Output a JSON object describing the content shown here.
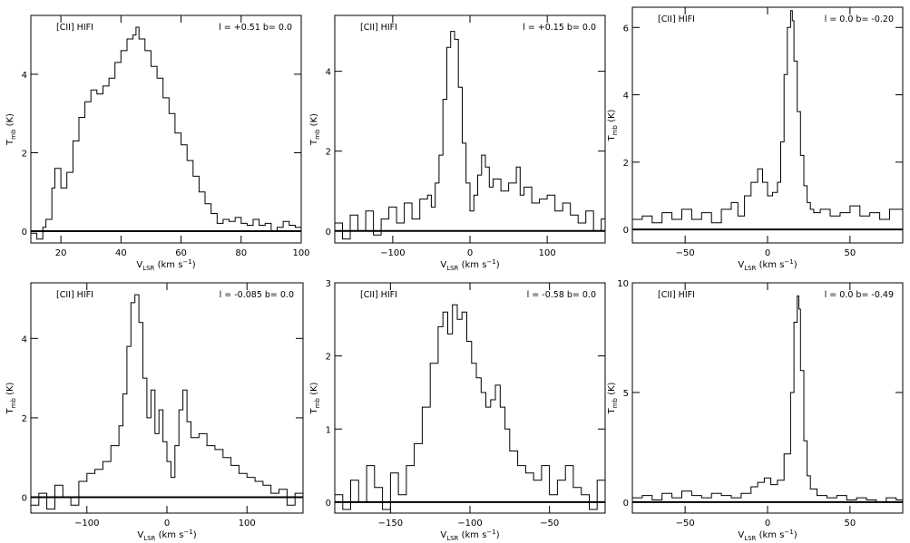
{
  "chart_data": [
    {
      "type": "line",
      "step": true,
      "label": "[CII] HIFI",
      "coords": "l = +0.51  b= 0.0",
      "xlabel": "V",
      "xlabel_sub": "LSR",
      "xlabel_units": " (km s",
      "ylabel": "T",
      "ylabel_sub": "mb",
      "ylabel_units": " (K)",
      "xlim": [
        10,
        100
      ],
      "ylim": [
        -0.3,
        5.5
      ],
      "xticks": [
        20,
        40,
        60,
        80,
        100
      ],
      "yticks": [
        0,
        2,
        4
      ],
      "x": [
        10,
        12,
        14,
        15,
        17,
        18,
        20,
        22,
        24,
        26,
        28,
        30,
        32,
        34,
        36,
        38,
        40,
        42,
        44,
        45,
        46,
        48,
        50,
        52,
        54,
        56,
        58,
        60,
        62,
        64,
        66,
        68,
        70,
        72,
        74,
        76,
        78,
        80,
        82,
        84,
        86,
        88,
        90,
        92,
        94,
        96,
        98,
        100
      ],
      "y": [
        -0.05,
        -0.2,
        0.1,
        0.3,
        1.1,
        1.6,
        1.1,
        1.5,
        2.3,
        2.9,
        3.3,
        3.6,
        3.5,
        3.7,
        3.9,
        4.3,
        4.6,
        4.9,
        5.0,
        5.2,
        4.9,
        4.6,
        4.2,
        3.9,
        3.4,
        3.0,
        2.5,
        2.2,
        1.8,
        1.4,
        1.0,
        0.7,
        0.45,
        0.2,
        0.3,
        0.25,
        0.35,
        0.2,
        0.15,
        0.3,
        0.15,
        0.2,
        0.0,
        0.1,
        0.25,
        0.15,
        0.1,
        0.2
      ]
    },
    {
      "type": "line",
      "step": true,
      "label": "[CII] HIFI",
      "coords": "l = +0.15  b= 0.0",
      "xlabel": "V",
      "xlabel_sub": "LSR",
      "xlabel_units": " (km s",
      "ylabel": "T",
      "ylabel_sub": "mb",
      "ylabel_units": " (K)",
      "xlim": [
        -175,
        175
      ],
      "ylim": [
        -0.3,
        5.4
      ],
      "xticks": [
        -100,
        0,
        100
      ],
      "yticks": [
        0,
        2,
        4
      ],
      "x": [
        -175,
        -165,
        -155,
        -145,
        -135,
        -125,
        -115,
        -105,
        -95,
        -85,
        -75,
        -65,
        -55,
        -50,
        -45,
        -40,
        -35,
        -30,
        -25,
        -20,
        -15,
        -10,
        -5,
        0,
        5,
        10,
        15,
        20,
        25,
        30,
        40,
        50,
        60,
        65,
        70,
        80,
        90,
        100,
        110,
        120,
        130,
        140,
        150,
        160,
        170,
        175
      ],
      "y": [
        0.2,
        -0.2,
        0.4,
        0.0,
        0.5,
        -0.1,
        0.3,
        0.6,
        0.2,
        0.7,
        0.3,
        0.8,
        0.9,
        0.6,
        1.2,
        1.9,
        3.3,
        4.6,
        5.0,
        4.8,
        3.6,
        2.2,
        1.2,
        0.5,
        0.9,
        1.4,
        1.9,
        1.6,
        1.1,
        1.3,
        1.0,
        1.2,
        1.6,
        0.9,
        1.1,
        0.7,
        0.8,
        0.9,
        0.5,
        0.7,
        0.4,
        0.2,
        0.5,
        0.0,
        0.3,
        0.1
      ]
    },
    {
      "type": "line",
      "step": true,
      "label": "[CII] HIFI",
      "coords": "l = 0.0  b= -0.20",
      "xlabel": "V",
      "xlabel_sub": "LSR",
      "xlabel_units": " (km s",
      "ylabel": "T",
      "ylabel_sub": "mb",
      "ylabel_units": " (K)",
      "xlim": [
        -82,
        82
      ],
      "ylim": [
        -0.4,
        6.6
      ],
      "xticks": [
        -50,
        0,
        50
      ],
      "yticks": [
        0,
        2,
        4,
        6
      ],
      "x": [
        -82,
        -76,
        -70,
        -64,
        -58,
        -52,
        -46,
        -40,
        -34,
        -28,
        -22,
        -18,
        -14,
        -10,
        -6,
        -3,
        0,
        3,
        6,
        8,
        10,
        12,
        14,
        15,
        16,
        18,
        20,
        22,
        24,
        26,
        28,
        32,
        38,
        44,
        50,
        56,
        62,
        68,
        74,
        82
      ],
      "y": [
        0.3,
        0.4,
        0.2,
        0.5,
        0.3,
        0.6,
        0.3,
        0.5,
        0.2,
        0.6,
        0.8,
        0.4,
        1.0,
        1.4,
        1.8,
        1.4,
        1.0,
        1.1,
        1.4,
        2.6,
        4.6,
        6.0,
        6.5,
        6.2,
        5.0,
        3.5,
        2.2,
        1.3,
        0.8,
        0.6,
        0.5,
        0.6,
        0.4,
        0.5,
        0.7,
        0.4,
        0.5,
        0.3,
        0.6,
        0.4
      ]
    },
    {
      "type": "line",
      "step": true,
      "label": "[CII] HIFI",
      "coords": "l = -0.085  b= 0.0",
      "xlabel": "V",
      "xlabel_sub": "LSR",
      "xlabel_units": " (km s",
      "ylabel": "T",
      "ylabel_sub": "mb",
      "ylabel_units": " (K)",
      "xlim": [
        -170,
        170
      ],
      "ylim": [
        -0.4,
        5.4
      ],
      "xticks": [
        -100,
        0,
        100
      ],
      "yticks": [
        0,
        2,
        4
      ],
      "x": [
        -170,
        -160,
        -150,
        -140,
        -130,
        -120,
        -110,
        -100,
        -90,
        -80,
        -70,
        -60,
        -55,
        -50,
        -45,
        -40,
        -35,
        -30,
        -25,
        -20,
        -15,
        -10,
        -5,
        0,
        5,
        10,
        15,
        20,
        25,
        30,
        40,
        50,
        60,
        70,
        80,
        90,
        100,
        110,
        120,
        130,
        140,
        150,
        160,
        170
      ],
      "y": [
        -0.2,
        0.1,
        -0.3,
        0.3,
        0.0,
        -0.2,
        0.4,
        0.6,
        0.7,
        0.9,
        1.3,
        1.8,
        2.6,
        3.8,
        4.9,
        5.1,
        4.4,
        3.0,
        2.0,
        2.7,
        1.6,
        2.2,
        1.4,
        0.9,
        0.5,
        1.3,
        2.2,
        2.7,
        1.9,
        1.5,
        1.6,
        1.3,
        1.2,
        1.0,
        0.8,
        0.6,
        0.5,
        0.4,
        0.3,
        0.1,
        0.2,
        -0.2,
        0.1,
        -0.1
      ]
    },
    {
      "type": "line",
      "step": true,
      "label": "[CII] HIFI",
      "coords": "l = -0.58  b= 0.0",
      "xlabel": "V",
      "xlabel_sub": "LSR",
      "xlabel_units": " (km s",
      "ylabel": "T",
      "ylabel_sub": "mb",
      "ylabel_units": " (K)",
      "xlim": [
        -185,
        -15
      ],
      "ylim": [
        -0.15,
        3.0
      ],
      "xticks": [
        -150,
        -100,
        -50
      ],
      "yticks": [
        0,
        1,
        2,
        3
      ],
      "x": [
        -185,
        -180,
        -175,
        -170,
        -165,
        -160,
        -155,
        -150,
        -145,
        -140,
        -135,
        -130,
        -125,
        -120,
        -117,
        -114,
        -111,
        -108,
        -105,
        -102,
        -99,
        -96,
        -93,
        -90,
        -87,
        -84,
        -81,
        -78,
        -75,
        -70,
        -65,
        -60,
        -55,
        -50,
        -45,
        -40,
        -35,
        -30,
        -25,
        -20,
        -15
      ],
      "y": [
        0.1,
        -0.1,
        0.3,
        0.0,
        0.5,
        0.2,
        -0.1,
        0.4,
        0.1,
        0.5,
        0.8,
        1.3,
        1.9,
        2.4,
        2.6,
        2.3,
        2.7,
        2.5,
        2.6,
        2.2,
        1.9,
        1.7,
        1.5,
        1.3,
        1.4,
        1.6,
        1.3,
        1.0,
        0.7,
        0.5,
        0.4,
        0.3,
        0.5,
        0.1,
        0.3,
        0.5,
        0.2,
        0.1,
        -0.1,
        0.3,
        0.8
      ]
    },
    {
      "type": "line",
      "step": true,
      "label": "[CII] HIFI",
      "coords": "l = 0.0  b= -0.49",
      "xlabel": "V",
      "xlabel_sub": "LSR",
      "xlabel_units": " (km s",
      "ylabel": "T",
      "ylabel_sub": "mb",
      "ylabel_units": " (K)",
      "xlim": [
        -82,
        82
      ],
      "ylim": [
        -0.5,
        10
      ],
      "xticks": [
        -50,
        0,
        50
      ],
      "yticks": [
        0,
        5,
        10
      ],
      "x": [
        -82,
        -76,
        -70,
        -64,
        -58,
        -52,
        -46,
        -40,
        -34,
        -28,
        -22,
        -16,
        -10,
        -6,
        -2,
        2,
        6,
        10,
        14,
        16,
        18,
        19,
        20,
        22,
        24,
        26,
        30,
        36,
        42,
        48,
        54,
        60,
        66,
        72,
        78,
        82
      ],
      "y": [
        0.2,
        0.3,
        0.1,
        0.4,
        0.2,
        0.5,
        0.3,
        0.2,
        0.4,
        0.3,
        0.2,
        0.4,
        0.7,
        0.9,
        1.1,
        0.8,
        1.0,
        2.2,
        5.0,
        8.2,
        9.4,
        8.8,
        6.0,
        2.8,
        1.2,
        0.6,
        0.3,
        0.2,
        0.3,
        0.1,
        0.2,
        0.1,
        0.0,
        0.2,
        0.1,
        0.1
      ]
    }
  ]
}
